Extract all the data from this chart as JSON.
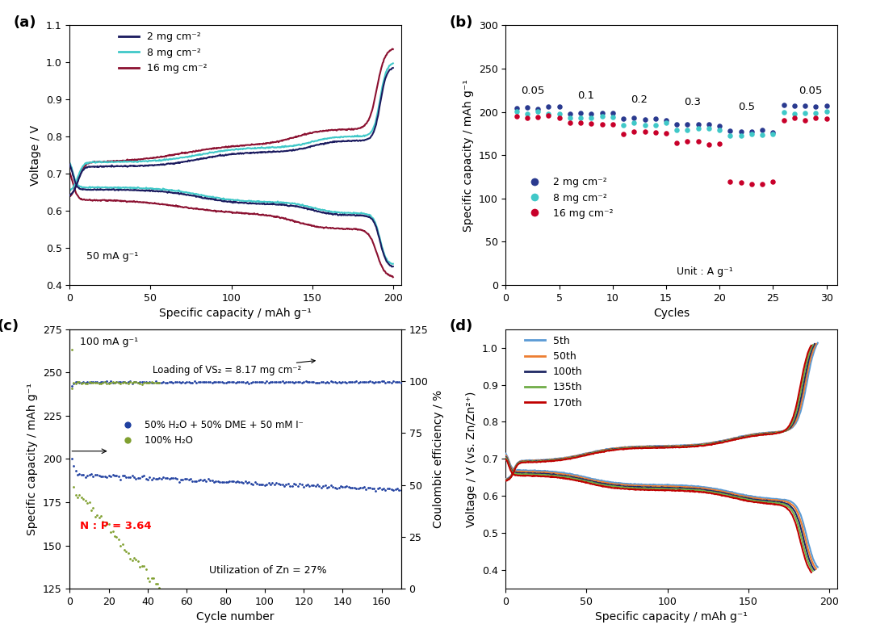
{
  "panel_labels": [
    "(a)",
    "(b)",
    "(c)",
    "(d)"
  ],
  "colors": {
    "navy": "#1a1a5e",
    "teal": "#40c8c8",
    "dark_red": "#8b1030",
    "blue_dot": "#2a3a8f",
    "teal_dot": "#40c8c8",
    "red_dot": "#c8002a",
    "blue_scatter": "#2040a0",
    "green_scatter": "#80a030",
    "line5": "#5b9bd5",
    "line50": "#ed7d31",
    "line100": "#1f2864",
    "line135": "#70ad47",
    "line170": "#c00000"
  },
  "panel_a": {
    "ylabel": "Voltage / V",
    "xlabel": "Specific capacity / mAh g⁻¹",
    "ylim": [
      0.4,
      1.1
    ],
    "xlim": [
      0,
      205
    ],
    "yticks": [
      0.4,
      0.5,
      0.6,
      0.7,
      0.8,
      0.9,
      1.0,
      1.1
    ],
    "xticks": [
      0,
      50,
      100,
      150,
      200
    ],
    "annotation": "50 mA g⁻¹",
    "legend_labels": [
      "2 mg cm⁻²",
      "8 mg cm⁻²",
      "16 mg cm⁻²"
    ]
  },
  "panel_b": {
    "ylabel": "Specific capacity / mAh g⁻¹",
    "xlabel": "Cycles",
    "ylim": [
      0,
      300
    ],
    "xlim": [
      0,
      31
    ],
    "yticks": [
      0,
      50,
      100,
      150,
      200,
      250,
      300
    ],
    "xticks": [
      0,
      5,
      10,
      15,
      20,
      25,
      30
    ],
    "rate_labels": [
      "0.05",
      "0.1",
      "0.2",
      "0.3",
      "0.5",
      "0.05"
    ],
    "rate_x": [
      2.5,
      7.5,
      12.5,
      17.5,
      22.5,
      28.5
    ],
    "rate_y": [
      218,
      213,
      208,
      205,
      200,
      218
    ],
    "legend_labels": [
      "2 mg cm⁻²",
      "8 mg cm⁻²",
      "16 mg cm⁻²"
    ],
    "unit_label": "Unit : A g⁻¹"
  },
  "panel_c": {
    "ylabel_left": "Specific capacity / mAh g⁻¹",
    "ylabel_right": "Coulombic efficiency / %",
    "xlabel": "Cycle number",
    "ylim_left": [
      125,
      275
    ],
    "ylim_right": [
      0,
      125
    ],
    "yticks_left": [
      125,
      150,
      175,
      200,
      225,
      250,
      275
    ],
    "yticks_right": [
      0,
      25,
      50,
      75,
      100,
      125
    ],
    "xlim": [
      0,
      170
    ],
    "xticks": [
      0,
      20,
      40,
      60,
      80,
      100,
      120,
      140,
      160
    ],
    "annotation1": "100 mA g⁻¹",
    "annotation2": "Loading of VS₂ = 8.17 mg cm⁻²",
    "annotation3": "N : P = 3.64",
    "annotation4": "Utilization of Zn = 27%",
    "legend_label_blue": "50% H₂O + 50% DME + 50 mM I⁻",
    "legend_label_green": "100% H₂O"
  },
  "panel_d": {
    "ylabel": "Voltage / V (vs. Zn/Zn²⁺)",
    "xlabel": "Specific capacity / mAh g⁻¹",
    "ylim": [
      0.35,
      1.05
    ],
    "xlim": [
      0,
      205
    ],
    "yticks": [
      0.4,
      0.5,
      0.6,
      0.7,
      0.8,
      0.9,
      1.0
    ],
    "xticks": [
      0,
      50,
      100,
      150,
      200
    ],
    "legend_labels": [
      "5th",
      "50th",
      "100th",
      "135th",
      "170th"
    ]
  }
}
